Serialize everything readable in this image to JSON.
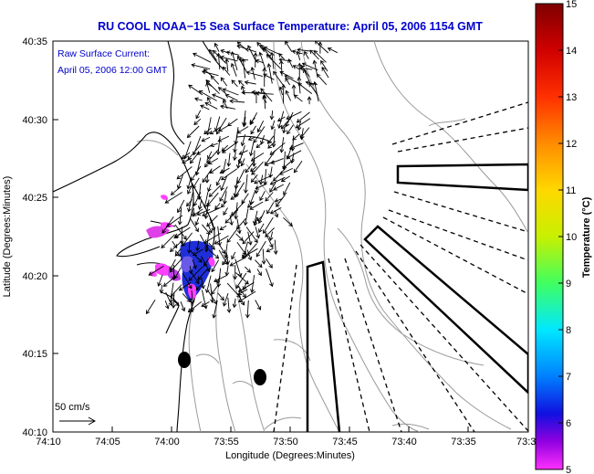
{
  "title": "RU COOL  NOAA−15  Sea Surface Temperature:  April 05, 2006 1154 GMT",
  "inset_line1": "Raw Surface Current:",
  "inset_line2": "April 05, 2006 12:00 GMT",
  "scale_label": "50 cm/s",
  "xlabel": "Longitude (Degrees:Minutes)",
  "ylabel": "Latitude (Degrees:Minutes)",
  "colorbar_label": "Temperature (°C)",
  "x_ticks": [
    "74:10",
    "74:05",
    "74:00",
    "73:55",
    "73:50",
    "73:45",
    "73:40",
    "73:35",
    "73:3"
  ],
  "y_ticks": [
    "40:35",
    "40:30",
    "40:25",
    "40:20",
    "40:15",
    "40:10"
  ],
  "cb_ticks": [
    "15",
    "14",
    "13",
    "12",
    "11",
    "10",
    "9",
    "8",
    "7",
    "6",
    "5"
  ],
  "colors": {
    "title": "#0000cc",
    "cb_top": "#8b0000",
    "cb_bottom": "#ff22ff"
  }
}
